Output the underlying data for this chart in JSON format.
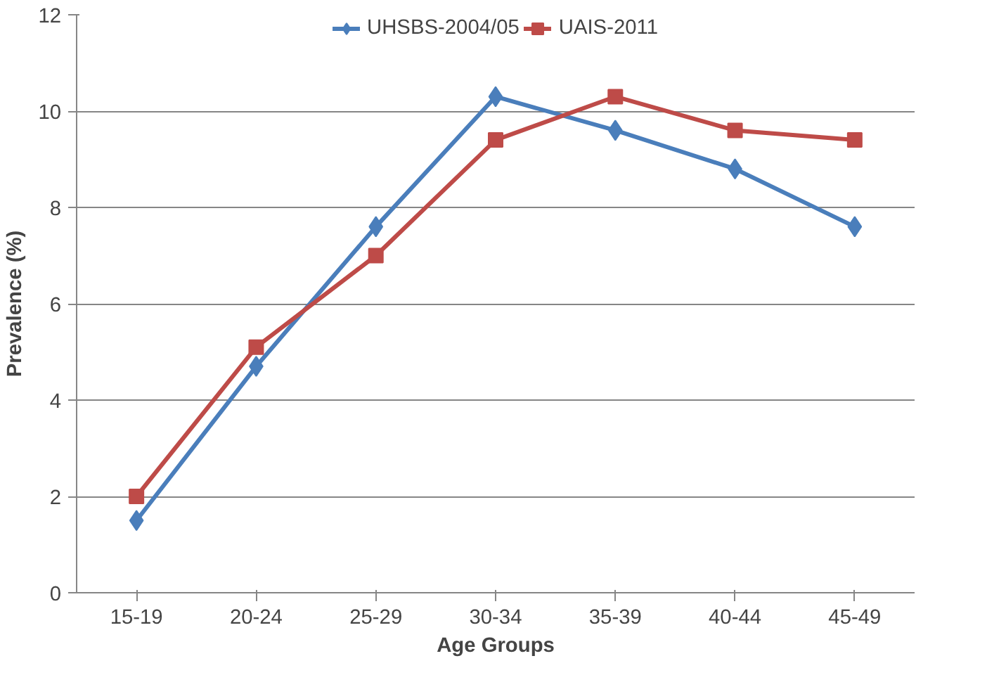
{
  "chart_data": {
    "type": "line",
    "xlabel": "Age Groups",
    "ylabel": "Prevalence (%)",
    "categories": [
      "15-19",
      "20-24",
      "25-29",
      "30-34",
      "35-39",
      "40-44",
      "45-49"
    ],
    "series": [
      {
        "name": "UHSBS-2004/05",
        "color": "#4a7ebb",
        "marker": "diamond",
        "values": [
          1.5,
          4.7,
          7.6,
          10.3,
          9.6,
          8.8,
          7.6
        ]
      },
      {
        "name": "UAIS-2011",
        "color": "#be4b48",
        "marker": "square",
        "values": [
          2.0,
          5.1,
          7.0,
          9.4,
          10.3,
          9.6,
          9.4
        ]
      }
    ],
    "ylim": [
      0,
      12
    ],
    "yticks": [
      0,
      2,
      4,
      6,
      8,
      10,
      12
    ],
    "grid": "y",
    "legend": "top",
    "line_style": "solid"
  }
}
